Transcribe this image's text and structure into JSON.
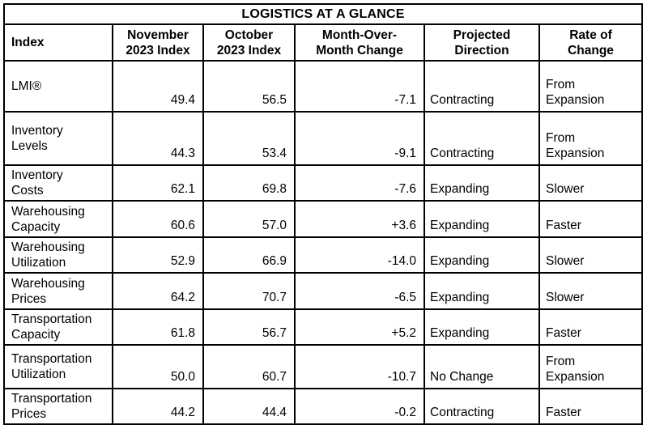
{
  "title": "LOGISTICS AT A GLANCE",
  "columns": {
    "index": "Index",
    "november": "November\n2023 Index",
    "october": "October\n2023 Index",
    "change": "Month-Over-\nMonth Change",
    "direction": "Projected\nDirection",
    "rate": "Rate of\nChange"
  },
  "rows": [
    {
      "index": "LMI®",
      "november": "49.4",
      "october": "56.5",
      "change": "-7.1",
      "direction": "Contracting",
      "rate": "From\nExpansion"
    },
    {
      "index": "Inventory\nLevels",
      "november": "44.3",
      "october": "53.4",
      "change": "-9.1",
      "direction": "Contracting",
      "rate": "From\nExpansion"
    },
    {
      "index": "Inventory\nCosts",
      "november": "62.1",
      "october": "69.8",
      "change": "-7.6",
      "direction": "Expanding",
      "rate": "Slower"
    },
    {
      "index": "Warehousing\nCapacity",
      "november": "60.6",
      "october": "57.0",
      "change": "+3.6",
      "direction": "Expanding",
      "rate": "Faster"
    },
    {
      "index": "Warehousing\nUtilization",
      "november": "52.9",
      "october": "66.9",
      "change": "-14.0",
      "direction": "Expanding",
      "rate": "Slower"
    },
    {
      "index": "Warehousing\nPrices",
      "november": "64.2",
      "october": "70.7",
      "change": "-6.5",
      "direction": "Expanding",
      "rate": "Slower"
    },
    {
      "index": "Transportation\nCapacity",
      "november": "61.8",
      "october": "56.7",
      "change": "+5.2",
      "direction": "Expanding",
      "rate": "Faster"
    },
    {
      "index": "Transportation\nUtilization",
      "november": "50.0",
      "october": "60.7",
      "change": "-10.7",
      "direction": "No Change",
      "rate": "From\nExpansion"
    },
    {
      "index": "Transportation\nPrices",
      "november": "44.2",
      "october": "44.4",
      "change": "-0.2",
      "direction": "Contracting",
      "rate": "Faster"
    }
  ]
}
